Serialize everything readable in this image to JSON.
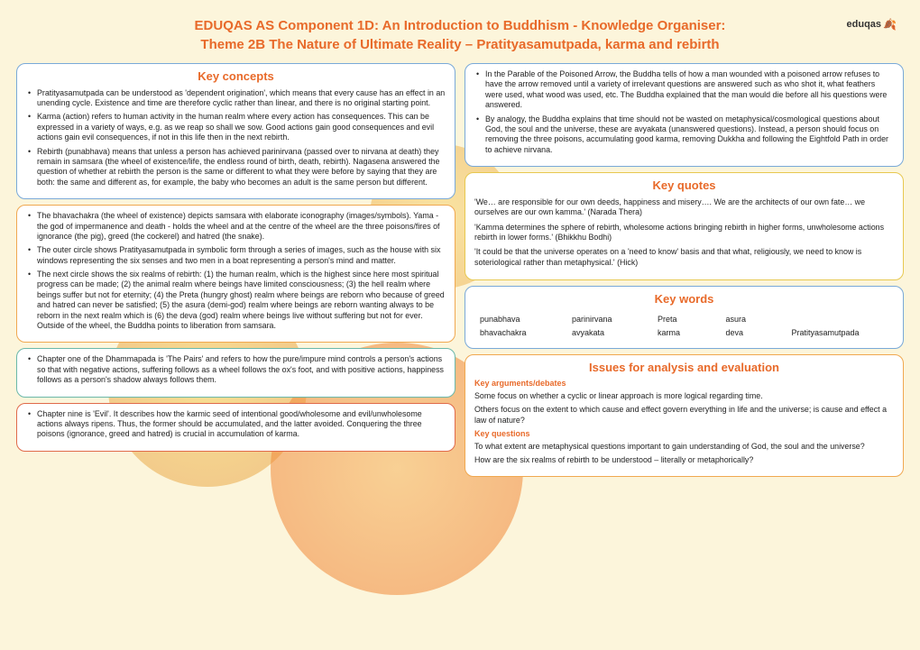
{
  "header": {
    "line1": "EDUQAS AS Component 1D: An Introduction to Buddhism - Knowledge Organiser:",
    "line2": "Theme 2B The Nature of Ultimate Reality – Pratityasamutpada, karma and rebirth",
    "logo_text": "eduqas"
  },
  "left": {
    "concepts": {
      "title": "Key concepts",
      "b1": "Pratityasamutpada can be understood as 'dependent origination', which means that every cause has an effect in an unending cycle. Existence and time are therefore cyclic rather than linear, and there is no original starting point.",
      "b2": "Karma (action) refers to human activity in the human realm where every action has consequences. This can be expressed in a variety of ways, e.g. as we reap so shall we sow. Good actions gain good consequences and evil actions gain evil consequences, if not in this life then in the next rebirth.",
      "b3": "Rebirth (punabhava) means that unless a person has achieved parinirvana (passed over to nirvana at death) they remain in samsara (the wheel of existence/life, the endless round of birth, death, rebirth). Nagasena answered the question of whether at rebirth the person is the same or different to what they were before by saying that they are both: the same and different as, for example, the baby who becomes an adult is the same person but different."
    },
    "bhava": {
      "b1": "The bhavachakra (the wheel of existence) depicts samsara with elaborate iconography (images/symbols). Yama - the god of impermanence and death - holds the wheel and at the centre of the wheel are the three poisons/fires of ignorance (the pig), greed (the cockerel) and hatred (the snake).",
      "b2": "The outer circle shows Pratityasamutpada in symbolic form through a series of images, such as the house with six windows representing the six senses and two men in a boat representing a person's mind and matter.",
      "b3": "The next circle shows the six realms of rebirth: (1) the human realm, which is the highest since here most spiritual progress can be made; (2) the animal realm where beings have limited consciousness; (3) the hell realm where beings suffer but not for eternity; (4) the Preta (hungry ghost) realm where beings are reborn who because of greed and hatred can never be satisfied; (5) the asura (demi-god) realm where beings are reborn wanting always to be reborn in the next realm which is (6) the deva (god) realm where beings live without suffering but not for ever. Outside of the wheel, the Buddha points to liberation from samsara."
    },
    "dhamma1": {
      "b1": "Chapter one of the Dhammapada is 'The Pairs' and refers to how the pure/impure mind controls a person's actions so that with negative actions, suffering follows as a wheel follows the ox's foot, and with positive actions, happiness follows as a person's shadow always follows them."
    },
    "dhamma2": {
      "b1": "Chapter nine is 'Evil'. It describes how the karmic seed of intentional good/wholesome and evil/unwholesome actions always ripens. Thus, the former should be accumulated, and the latter avoided. Conquering the three poisons (ignorance, greed and hatred) is crucial in accumulation of karma."
    }
  },
  "right": {
    "parable": {
      "b1": "In the Parable of the Poisoned Arrow, the Buddha tells of how a man wounded with a poisoned arrow refuses to have the arrow removed until a variety of irrelevant questions are answered such as who shot it, what feathers were used, what wood was used, etc. The Buddha explained that the man would die before all his questions were answered.",
      "b2": "By analogy, the Buddha explains that time should not be wasted on metaphysical/cosmological questions about God, the soul and the universe, these are avyakata (unanswered questions). Instead, a person should focus on removing the three poisons, accumulating good karma, removing Dukkha and following the Eightfold Path in order to achieve nirvana."
    },
    "quotes": {
      "title": "Key quotes",
      "q1": "'We… are responsible for our own deeds, happiness and misery…. We are the architects of our own fate… we ourselves are our own kamma.' (Narada Thera)",
      "q2": "'Kamma determines the sphere of rebirth, wholesome actions bringing rebirth in higher forms, unwholesome actions rebirth in lower forms.' (Bhikkhu Bodhi)",
      "q3": "'It could be that the universe operates on a 'need to know' basis and that what, religiously, we need to know is soteriological rather than metaphysical.' (Hick)"
    },
    "keywords": {
      "title": "Key words",
      "w": [
        "punabhava",
        "parinirvana",
        "Preta",
        "asura",
        "",
        "bhavachakra",
        "avyakata",
        "karma",
        "deva",
        "Pratityasamutpada"
      ]
    },
    "issues": {
      "title": "Issues for analysis and evaluation",
      "sub1": "Key arguments/debates",
      "a1": "Some focus on whether a cyclic or linear approach is more logical regarding time.",
      "a2": "Others focus on the extent to which cause and effect govern everything in life and the universe; is cause and effect a law of nature?",
      "sub2": "Key questions",
      "q1": "To what extent are metaphysical questions important to gain understanding of God, the soul and the universe?",
      "q2": "How are the six realms of rebirth to be understood – literally or metaphorically?"
    }
  }
}
